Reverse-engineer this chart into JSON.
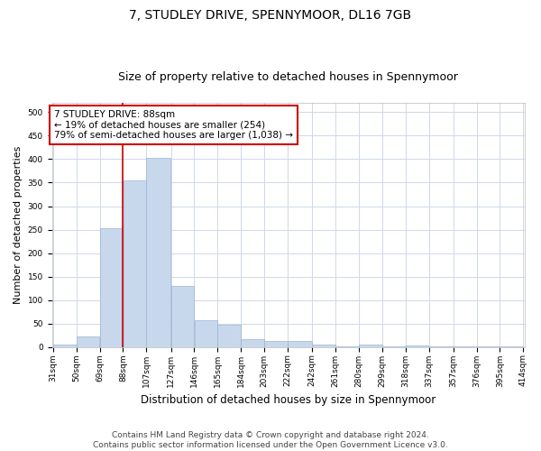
{
  "title": "7, STUDLEY DRIVE, SPENNYMOOR, DL16 7GB",
  "subtitle": "Size of property relative to detached houses in Spennymoor",
  "xlabel": "Distribution of detached houses by size in Spennymoor",
  "ylabel": "Number of detached properties",
  "bar_left_edges": [
    31,
    50,
    69,
    88,
    107,
    127,
    146,
    165,
    184,
    203,
    222,
    242,
    261,
    280,
    299,
    318,
    337,
    357,
    376,
    395
  ],
  "bar_widths": [
    19,
    19,
    19,
    19,
    20,
    19,
    19,
    19,
    19,
    19,
    20,
    19,
    19,
    19,
    19,
    19,
    20,
    19,
    19,
    19
  ],
  "bar_heights": [
    5,
    23,
    253,
    355,
    403,
    130,
    57,
    48,
    16,
    13,
    12,
    5,
    2,
    6,
    2,
    4,
    1,
    1,
    1,
    2
  ],
  "bar_color": "#c8d8ec",
  "bar_edgecolor": "#9ab4d0",
  "property_sqm": 88,
  "annotation_line1": "7 STUDLEY DRIVE: 88sqm",
  "annotation_line2": "← 19% of detached houses are smaller (254)",
  "annotation_line3": "79% of semi-detached houses are larger (1,038) →",
  "annotation_box_color": "#ffffff",
  "annotation_border_color": "#cc0000",
  "vline_color": "#cc0000",
  "ylim": [
    0,
    520
  ],
  "yticks": [
    0,
    50,
    100,
    150,
    200,
    250,
    300,
    350,
    400,
    450,
    500
  ],
  "tick_labels": [
    "31sqm",
    "50sqm",
    "69sqm",
    "88sqm",
    "107sqm",
    "127sqm",
    "146sqm",
    "165sqm",
    "184sqm",
    "203sqm",
    "222sqm",
    "242sqm",
    "261sqm",
    "280sqm",
    "299sqm",
    "318sqm",
    "337sqm",
    "357sqm",
    "376sqm",
    "395sqm",
    "414sqm"
  ],
  "footer_text": "Contains HM Land Registry data © Crown copyright and database right 2024.\nContains public sector information licensed under the Open Government Licence v3.0.",
  "bg_color": "#ffffff",
  "plot_bg_color": "#ffffff",
  "grid_color": "#d0d8e8",
  "title_fontsize": 10,
  "subtitle_fontsize": 9,
  "xlabel_fontsize": 8.5,
  "ylabel_fontsize": 8,
  "tick_fontsize": 6.5,
  "annotation_fontsize": 7.5,
  "footer_fontsize": 6.5
}
